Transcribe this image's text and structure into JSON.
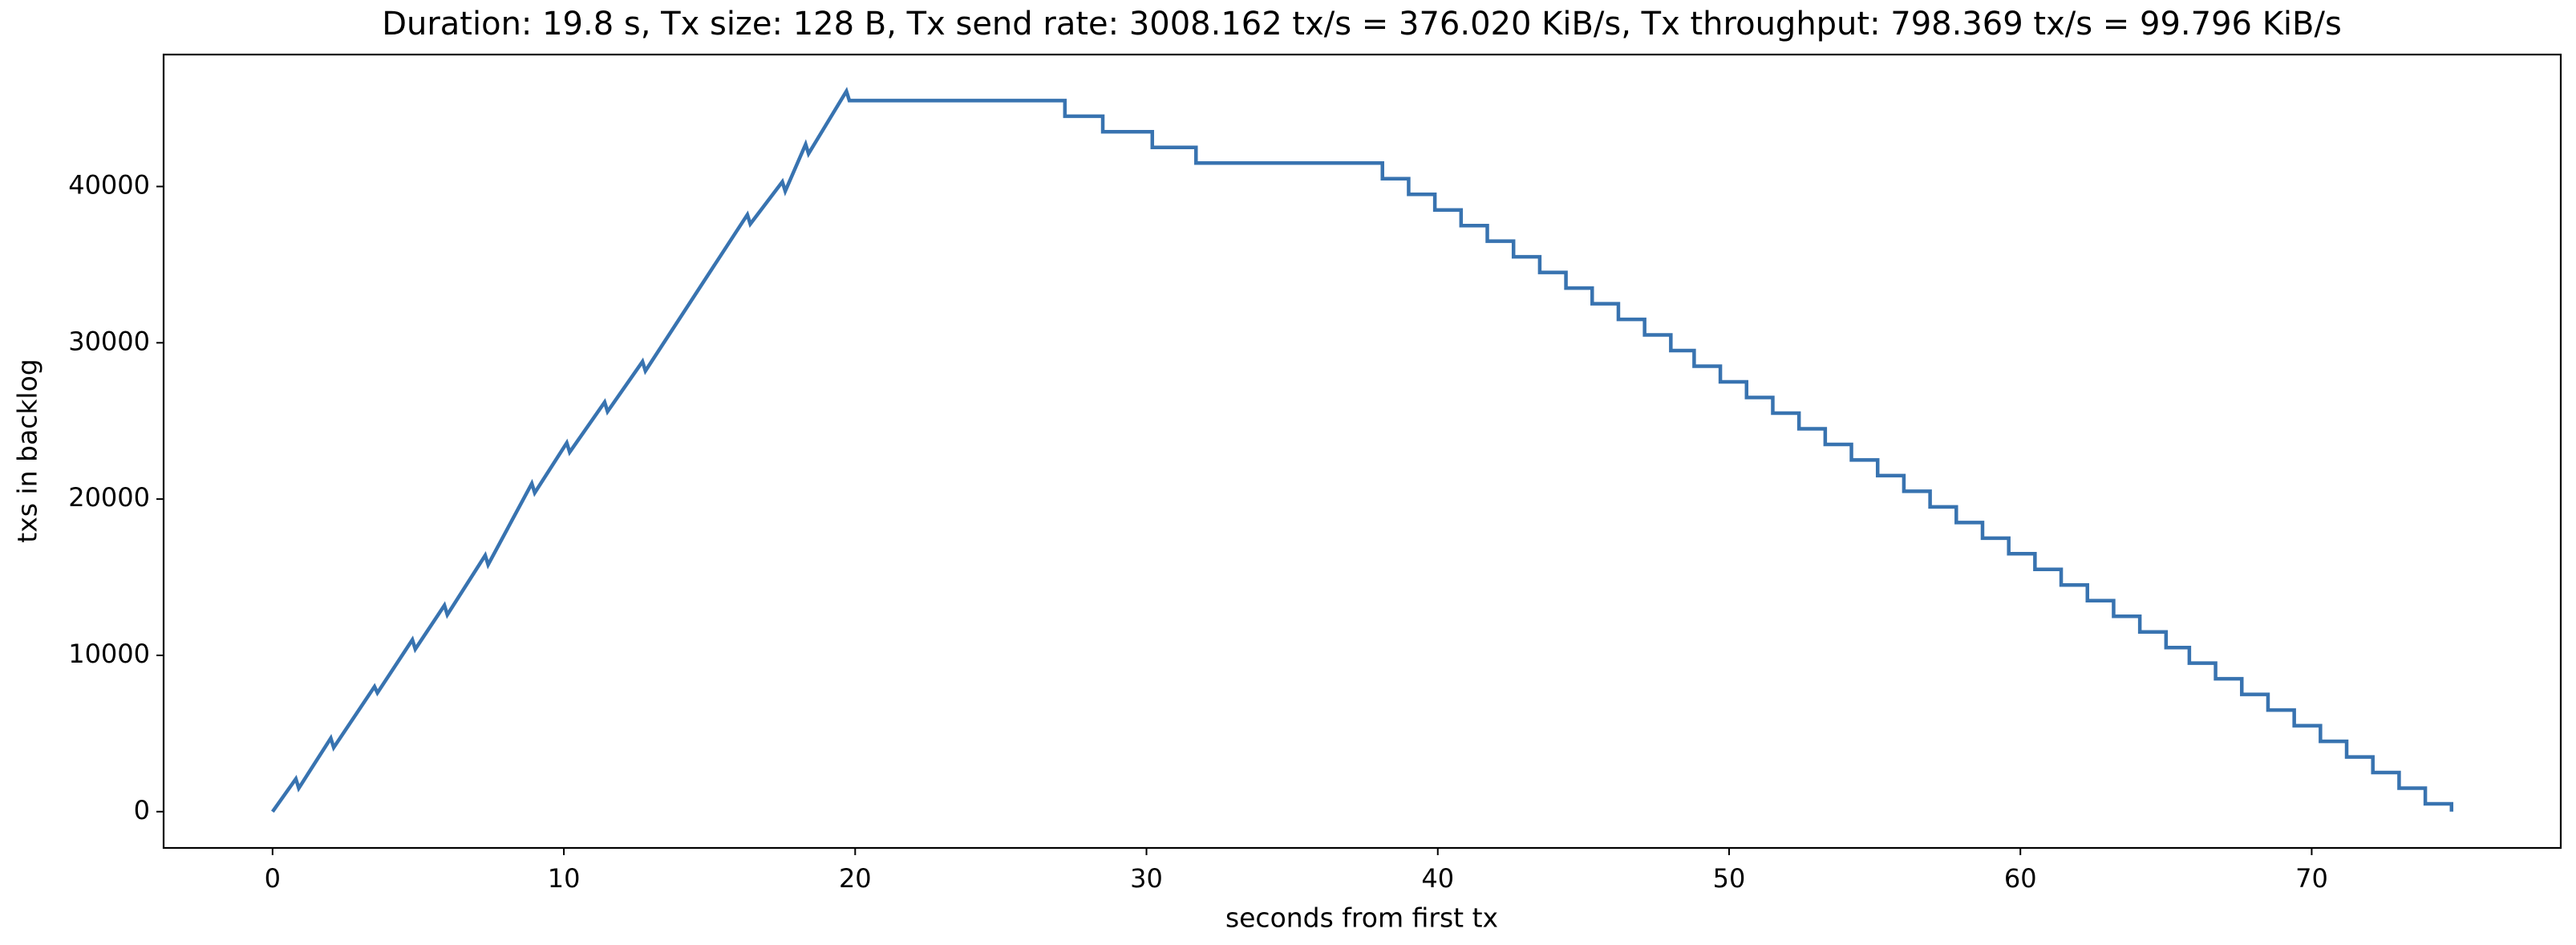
{
  "chart_data": {
    "type": "line",
    "title": "Duration: 19.8 s, Tx size: 128 B, Tx send rate: 3008.162 tx/s = 376.020 KiB/s, Tx throughput: 798.369 tx/s = 99.796 KiB/s",
    "x_label": "seconds from first tx",
    "y_label": "txs in backlog",
    "color": "#3873b0",
    "xlim": [
      -3.74,
      78.55
    ],
    "ylim": [
      -2322,
      48443
    ],
    "xticks": [
      0,
      10,
      20,
      30,
      40,
      50,
      60,
      70
    ],
    "yticks": [
      0,
      10000,
      20000,
      30000,
      40000
    ],
    "grid": false,
    "x": [
      0,
      0.8,
      0.9,
      2.0,
      2.1,
      3.5,
      3.6,
      4.8,
      4.9,
      5.9,
      6.0,
      7.3,
      7.4,
      8.9,
      9.0,
      10.1,
      10.2,
      11.4,
      11.5,
      12.7,
      12.8,
      16.3,
      16.4,
      17.5,
      17.6,
      18.3,
      18.4,
      19.7,
      19.8,
      27.2,
      27.2,
      28.5,
      28.5,
      30.2,
      30.2,
      31.7,
      31.7,
      38.1,
      38.1,
      39.0,
      39.0,
      39.9,
      39.9,
      40.8,
      40.8,
      41.7,
      41.7,
      42.6,
      42.6,
      43.5,
      43.5,
      44.4,
      44.4,
      45.3,
      45.3,
      46.2,
      46.2,
      47.1,
      47.1,
      48.0,
      48.0,
      48.8,
      48.8,
      49.7,
      49.7,
      50.6,
      50.6,
      51.5,
      51.5,
      52.4,
      52.4,
      53.3,
      53.3,
      54.2,
      54.2,
      55.1,
      55.1,
      56.0,
      56.0,
      56.9,
      56.9,
      57.8,
      57.8,
      58.7,
      58.7,
      59.6,
      59.6,
      60.5,
      60.5,
      61.4,
      61.4,
      62.3,
      62.3,
      63.2,
      63.2,
      64.1,
      64.1,
      65.0,
      65.0,
      65.8,
      65.8,
      66.7,
      66.7,
      67.6,
      67.6,
      68.5,
      68.5,
      69.4,
      69.4,
      70.3,
      70.3,
      71.2,
      71.2,
      72.1,
      72.1,
      73.0,
      73.0,
      73.9,
      73.9,
      74.8,
      74.8
    ],
    "values": [
      0,
      2100,
      1500,
      4700,
      4100,
      8000,
      7600,
      11000,
      10400,
      13200,
      12600,
      16400,
      15800,
      21000,
      20400,
      23600,
      23000,
      26200,
      25600,
      28800,
      28200,
      38200,
      37600,
      40300,
      39700,
      42700,
      42100,
      46100,
      45500,
      45500,
      44500,
      44500,
      43500,
      43500,
      42500,
      42500,
      41500,
      41500,
      40500,
      40500,
      39500,
      39500,
      38500,
      38500,
      37500,
      37500,
      36500,
      36500,
      35500,
      35500,
      34500,
      34500,
      33500,
      33500,
      32500,
      32500,
      31500,
      31500,
      30500,
      30500,
      29500,
      29500,
      28500,
      28500,
      27500,
      27500,
      26500,
      26500,
      25500,
      25500,
      24500,
      24500,
      23500,
      23500,
      22500,
      22500,
      21500,
      21500,
      20500,
      20500,
      19500,
      19500,
      18500,
      18500,
      17500,
      17500,
      16500,
      16500,
      15500,
      15500,
      14500,
      14500,
      13500,
      13500,
      12500,
      12500,
      11500,
      11500,
      10500,
      10500,
      9500,
      9500,
      8500,
      8500,
      7500,
      7500,
      6500,
      6500,
      5500,
      5500,
      4500,
      4500,
      3500,
      3500,
      2500,
      2500,
      1500,
      1500,
      500,
      500,
      0
    ]
  }
}
